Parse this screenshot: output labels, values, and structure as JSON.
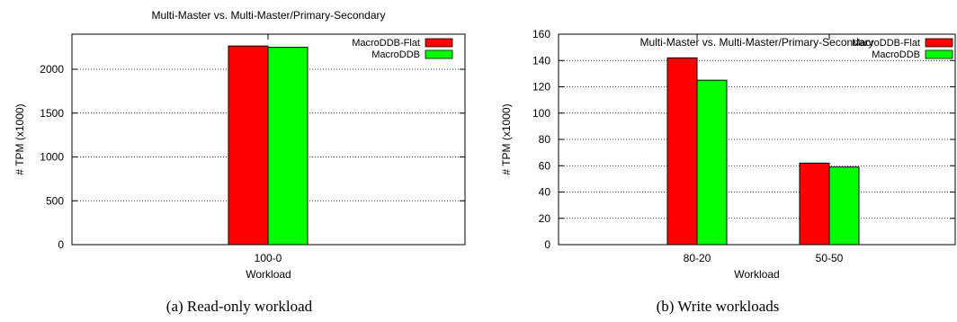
{
  "captions": {
    "a": "(a)  Read-only workload",
    "b": "(b)  Write workloads"
  },
  "chart_data": [
    {
      "type": "bar",
      "title": "Multi-Master vs. Multi-Master/Primary-Secondary",
      "xlabel": "Workload",
      "ylabel": "# TPM (x1000)",
      "categories": [
        "100-0"
      ],
      "series": [
        {
          "name": "MacroDDB-Flat",
          "color": "#ff0000",
          "values": [
            2265
          ]
        },
        {
          "name": "MacroDDB",
          "color": "#00ff00",
          "values": [
            2250
          ]
        }
      ],
      "ylim": [
        0,
        2400
      ],
      "yticks": [
        0,
        500,
        1000,
        1500,
        2000
      ],
      "grid": true,
      "legend": "top-right"
    },
    {
      "type": "bar",
      "title": "Multi-Master vs. Multi-Master/Primary-Secondary",
      "xlabel": "Workload",
      "ylabel": "# TPM (x1000)",
      "categories": [
        "80-20",
        "50-50"
      ],
      "series": [
        {
          "name": "MacroDDB-Flat",
          "color": "#ff0000",
          "values": [
            142,
            62
          ]
        },
        {
          "name": "MacroDDB",
          "color": "#00ff00",
          "values": [
            125,
            59
          ]
        }
      ],
      "ylim": [
        0,
        160
      ],
      "yticks": [
        0,
        20,
        40,
        60,
        80,
        100,
        120,
        140,
        160
      ],
      "grid": true,
      "legend": "top-right"
    }
  ]
}
